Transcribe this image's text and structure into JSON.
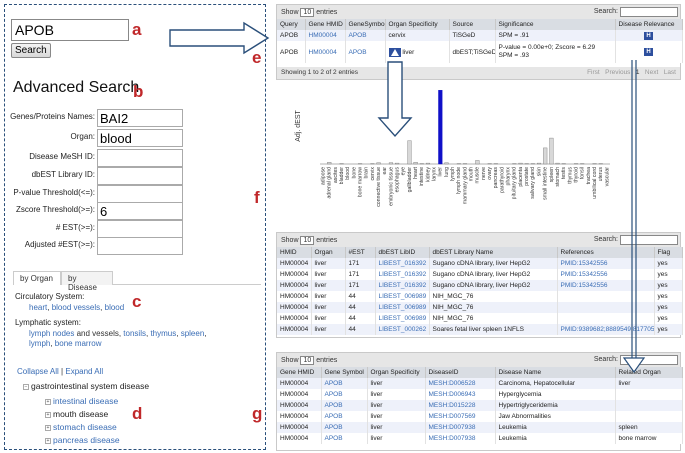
{
  "letters": {
    "a": "a",
    "b": "b",
    "c": "c",
    "d": "d",
    "e": "e",
    "f": "f",
    "g": "g"
  },
  "search": {
    "value": "APOB",
    "button": "Search"
  },
  "advanced": {
    "title": "Advanced Search",
    "fields": [
      {
        "label": "Genes/Proteins Names:",
        "value": "BAI2"
      },
      {
        "label": "Organ:",
        "value": "blood"
      },
      {
        "label": "Disease MeSH ID:",
        "value": ""
      },
      {
        "label": "dbEST Library ID:",
        "value": ""
      },
      {
        "label": "P-value Threshold(<=):",
        "value": ""
      },
      {
        "label": "Zscore Threshold(>=):",
        "value": "6"
      },
      {
        "label": "# EST(>=):",
        "value": ""
      },
      {
        "label": "Adjusted #EST(>=):",
        "value": ""
      }
    ]
  },
  "tabs": [
    "by Organ",
    "by Disease"
  ],
  "organ_browser": {
    "circ_label": "Circulatory System:",
    "circ_links": [
      "heart",
      "blood vessels",
      "blood"
    ],
    "lymph_label": "Lymphatic system:",
    "lymph_line1": [
      "lymph nodes",
      "and vessels,",
      "tonsils",
      "thymus",
      "spleen"
    ],
    "lymph_line2": [
      "lymph",
      "bone marrow"
    ]
  },
  "tree": {
    "collapse": "Collapse All",
    "sep": "|",
    "expand": "Expand All",
    "root": "gastrointestinal system disease",
    "children": [
      "intestinal disease",
      "mouth disease",
      "stomach disease",
      "pancreas disease"
    ]
  },
  "table_e": {
    "show": "Show",
    "entries_sel": "10",
    "entries": "entries",
    "search": "Search:",
    "headers": [
      "Query",
      "Gene HMID",
      "GeneSymbol",
      "Organ Specificity",
      "Source",
      "Significance",
      "Disease Relevance"
    ],
    "rows": [
      [
        "APOB",
        "HM00004",
        "APOB",
        "cervix",
        "TiSGeD",
        "SPM = .91",
        "H"
      ],
      [
        "APOB",
        "HM00004",
        "APOB",
        "liver",
        "dbEST;TiSGeD",
        "P-value = 0.00e+0; Zscore = 6.29",
        "H"
      ]
    ],
    "row2_extra": "SPM = .93",
    "info": "Showing 1 to 2 of 2 entries",
    "pager": [
      "First",
      "Previous",
      "1",
      "Next",
      "Last"
    ]
  },
  "chart_data": {
    "type": "bar",
    "ylabel": "Adj. dEST",
    "categories": [
      "adipose",
      "adrenal gland",
      "ascites",
      "bladder",
      "blood",
      "bone",
      "bone marrow",
      "brain",
      "cervix",
      "connective tissue",
      "ear",
      "embryonic tissue",
      "esophagus",
      "eye",
      "gallbladder",
      "heart",
      "intestine",
      "kidney",
      "larynx",
      "liver",
      "lung",
      "lymph",
      "lymph node",
      "mammary gland",
      "mouth",
      "muscle",
      "nerve",
      "ovary",
      "pancreas",
      "parathyroid",
      "pharynx",
      "pituitary gland",
      "placenta",
      "prostate",
      "salivary gland",
      "skin",
      "small intestine",
      "spleen",
      "stomach",
      "testis",
      "thymus",
      "thyroid",
      "tonsil",
      "trachea",
      "umbilical cord",
      "uterus",
      "vascular"
    ],
    "values": [
      0,
      0.4,
      0,
      0.1,
      0,
      0,
      0.1,
      0,
      0.1,
      0.3,
      0,
      0.3,
      0.2,
      0,
      5.2,
      0.4,
      0.1,
      0.2,
      0,
      16.5,
      0.3,
      0,
      0.1,
      0.1,
      0,
      0.8,
      0,
      0.1,
      0.1,
      0,
      0,
      0.1,
      0.2,
      0.1,
      0.1,
      0.2,
      3.6,
      5.8,
      0.2,
      0.1,
      0,
      0.1,
      0.1,
      0,
      0.1,
      0.1,
      0
    ],
    "highlight": "liver",
    "ylim": [
      0,
      17
    ]
  },
  "table_f": {
    "show": "Show",
    "entries_sel": "10",
    "entries": "entries",
    "search": "Search:",
    "headers": [
      "HMID",
      "Organ",
      "#EST",
      "dbEST LibID",
      "dbEST Library Name",
      "References",
      "Flag"
    ],
    "rows": [
      [
        "HM00004",
        "liver",
        "171",
        "LIBEST_016392",
        "Sugano cDNA library, liver HepG2",
        "PMID:15342556",
        "yes"
      ],
      [
        "HM00004",
        "liver",
        "171",
        "LIBEST_016392",
        "Sugano cDNA library, liver HepG2",
        "PMID:15342556",
        "yes"
      ],
      [
        "HM00004",
        "liver",
        "171",
        "LIBEST_016392",
        "Sugano cDNA library, liver HepG2",
        "PMID:15342556",
        "yes"
      ],
      [
        "HM00004",
        "liver",
        "44",
        "LIBEST_006989",
        "NIH_MGC_76",
        "",
        "yes"
      ],
      [
        "HM00004",
        "liver",
        "44",
        "LIBEST_006989",
        "NIH_MGC_76",
        "",
        "yes"
      ],
      [
        "HM00004",
        "liver",
        "44",
        "LIBEST_006989",
        "NIH_MGC_76",
        "",
        "yes"
      ],
      [
        "HM00004",
        "liver",
        "44",
        "LIBEST_000262",
        "Soares fetal liver spleen 1NFLS",
        "PMID:9389682;8889549;8177057",
        "yes"
      ]
    ]
  },
  "table_g": {
    "show": "Show",
    "entries_sel": "10",
    "entries": "entries",
    "search": "Search:",
    "headers": [
      "Gene HMID",
      "Gene Symbol",
      "Organ Specificity",
      "DiseaseID",
      "Disease Name",
      "Related Organ"
    ],
    "rows": [
      [
        "HM00004",
        "APOB",
        "liver",
        "MESH:D006528",
        "Carcinoma, Hepatocellular",
        "liver"
      ],
      [
        "HM00004",
        "APOB",
        "liver",
        "MESH:D006943",
        "Hyperglycemia",
        ""
      ],
      [
        "HM00004",
        "APOB",
        "liver",
        "MESH:D015228",
        "Hypertriglyceridemia",
        ""
      ],
      [
        "HM00004",
        "APOB",
        "liver",
        "MESH:D007569",
        "Jaw Abnormalities",
        ""
      ],
      [
        "HM00004",
        "APOB",
        "liver",
        "MESH:D007938",
        "Leukemia",
        "spleen"
      ],
      [
        "HM00004",
        "APOB",
        "liver",
        "MESH:D007938",
        "Leukemia",
        "bone marrow"
      ]
    ]
  }
}
